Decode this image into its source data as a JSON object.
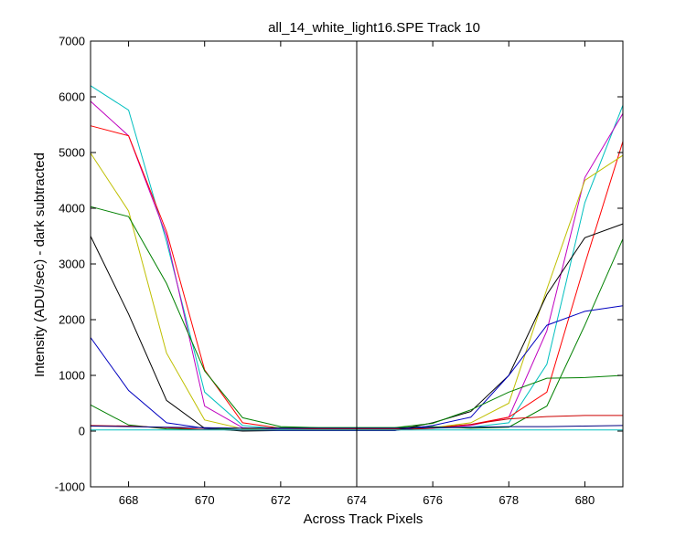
{
  "chart_data": {
    "type": "line",
    "title": "all_14_white_light16.SPE   Track 10",
    "xlabel": "Across Track Pixels",
    "ylabel": "Intensity (ADU/sec) - dark subtracted",
    "xlim": [
      667,
      681
    ],
    "ylim": [
      -1000,
      7000
    ],
    "xticks": [
      668,
      670,
      672,
      674,
      676,
      678,
      680
    ],
    "yticks": [
      -1000,
      0,
      1000,
      2000,
      3000,
      4000,
      5000,
      6000,
      7000
    ],
    "grid": false,
    "legend": "none",
    "annotations": [
      {
        "type": "vertical-line",
        "x": 674,
        "color": "#000000"
      }
    ],
    "x": [
      667,
      668,
      669,
      670,
      671,
      672,
      673,
      674,
      675,
      676,
      677,
      678,
      679,
      680,
      681
    ],
    "series": [
      {
        "color": "#00bfbf",
        "values": [
          6200,
          5760,
          3400,
          700,
          100,
          40,
          30,
          30,
          30,
          50,
          70,
          150,
          1200,
          4100,
          5850
        ]
      },
      {
        "color": "#bf00bf",
        "values": [
          5920,
          5300,
          3500,
          450,
          60,
          30,
          30,
          30,
          30,
          60,
          100,
          250,
          1800,
          4550,
          5700
        ]
      },
      {
        "color": "#ff0000",
        "values": [
          5480,
          5300,
          3580,
          1100,
          150,
          50,
          40,
          40,
          40,
          60,
          120,
          250,
          700,
          3000,
          5200
        ]
      },
      {
        "color": "#bfbf00",
        "values": [
          4990,
          3950,
          1400,
          200,
          40,
          20,
          20,
          20,
          20,
          60,
          150,
          500,
          2550,
          4500,
          4950
        ]
      },
      {
        "color": "#008000",
        "values": [
          4030,
          3850,
          2650,
          1080,
          240,
          80,
          60,
          60,
          60,
          80,
          50,
          70,
          450,
          1900,
          3450
        ]
      },
      {
        "color": "#000000",
        "values": [
          3500,
          2100,
          550,
          50,
          0,
          10,
          10,
          10,
          10,
          150,
          350,
          1000,
          2450,
          3470,
          3720
        ]
      },
      {
        "color": "#0000bf",
        "values": [
          1680,
          730,
          150,
          50,
          20,
          10,
          10,
          10,
          10,
          100,
          250,
          1000,
          1900,
          2150,
          2250
        ]
      },
      {
        "color": "#007f00",
        "values": [
          470,
          110,
          40,
          30,
          50,
          60,
          60,
          60,
          60,
          140,
          380,
          700,
          950,
          960,
          1000
        ]
      },
      {
        "color": "#cc0000",
        "values": [
          100,
          90,
          60,
          30,
          20,
          20,
          20,
          20,
          20,
          50,
          120,
          220,
          260,
          280,
          280
        ]
      },
      {
        "color": "#00007f",
        "values": [
          90,
          80,
          70,
          60,
          50,
          50,
          50,
          50,
          50,
          60,
          70,
          80,
          80,
          90,
          100
        ]
      },
      {
        "color": "#00bfbf",
        "values": [
          20,
          20,
          20,
          20,
          20,
          20,
          20,
          20,
          20,
          20,
          20,
          20,
          20,
          20,
          20
        ]
      }
    ]
  }
}
